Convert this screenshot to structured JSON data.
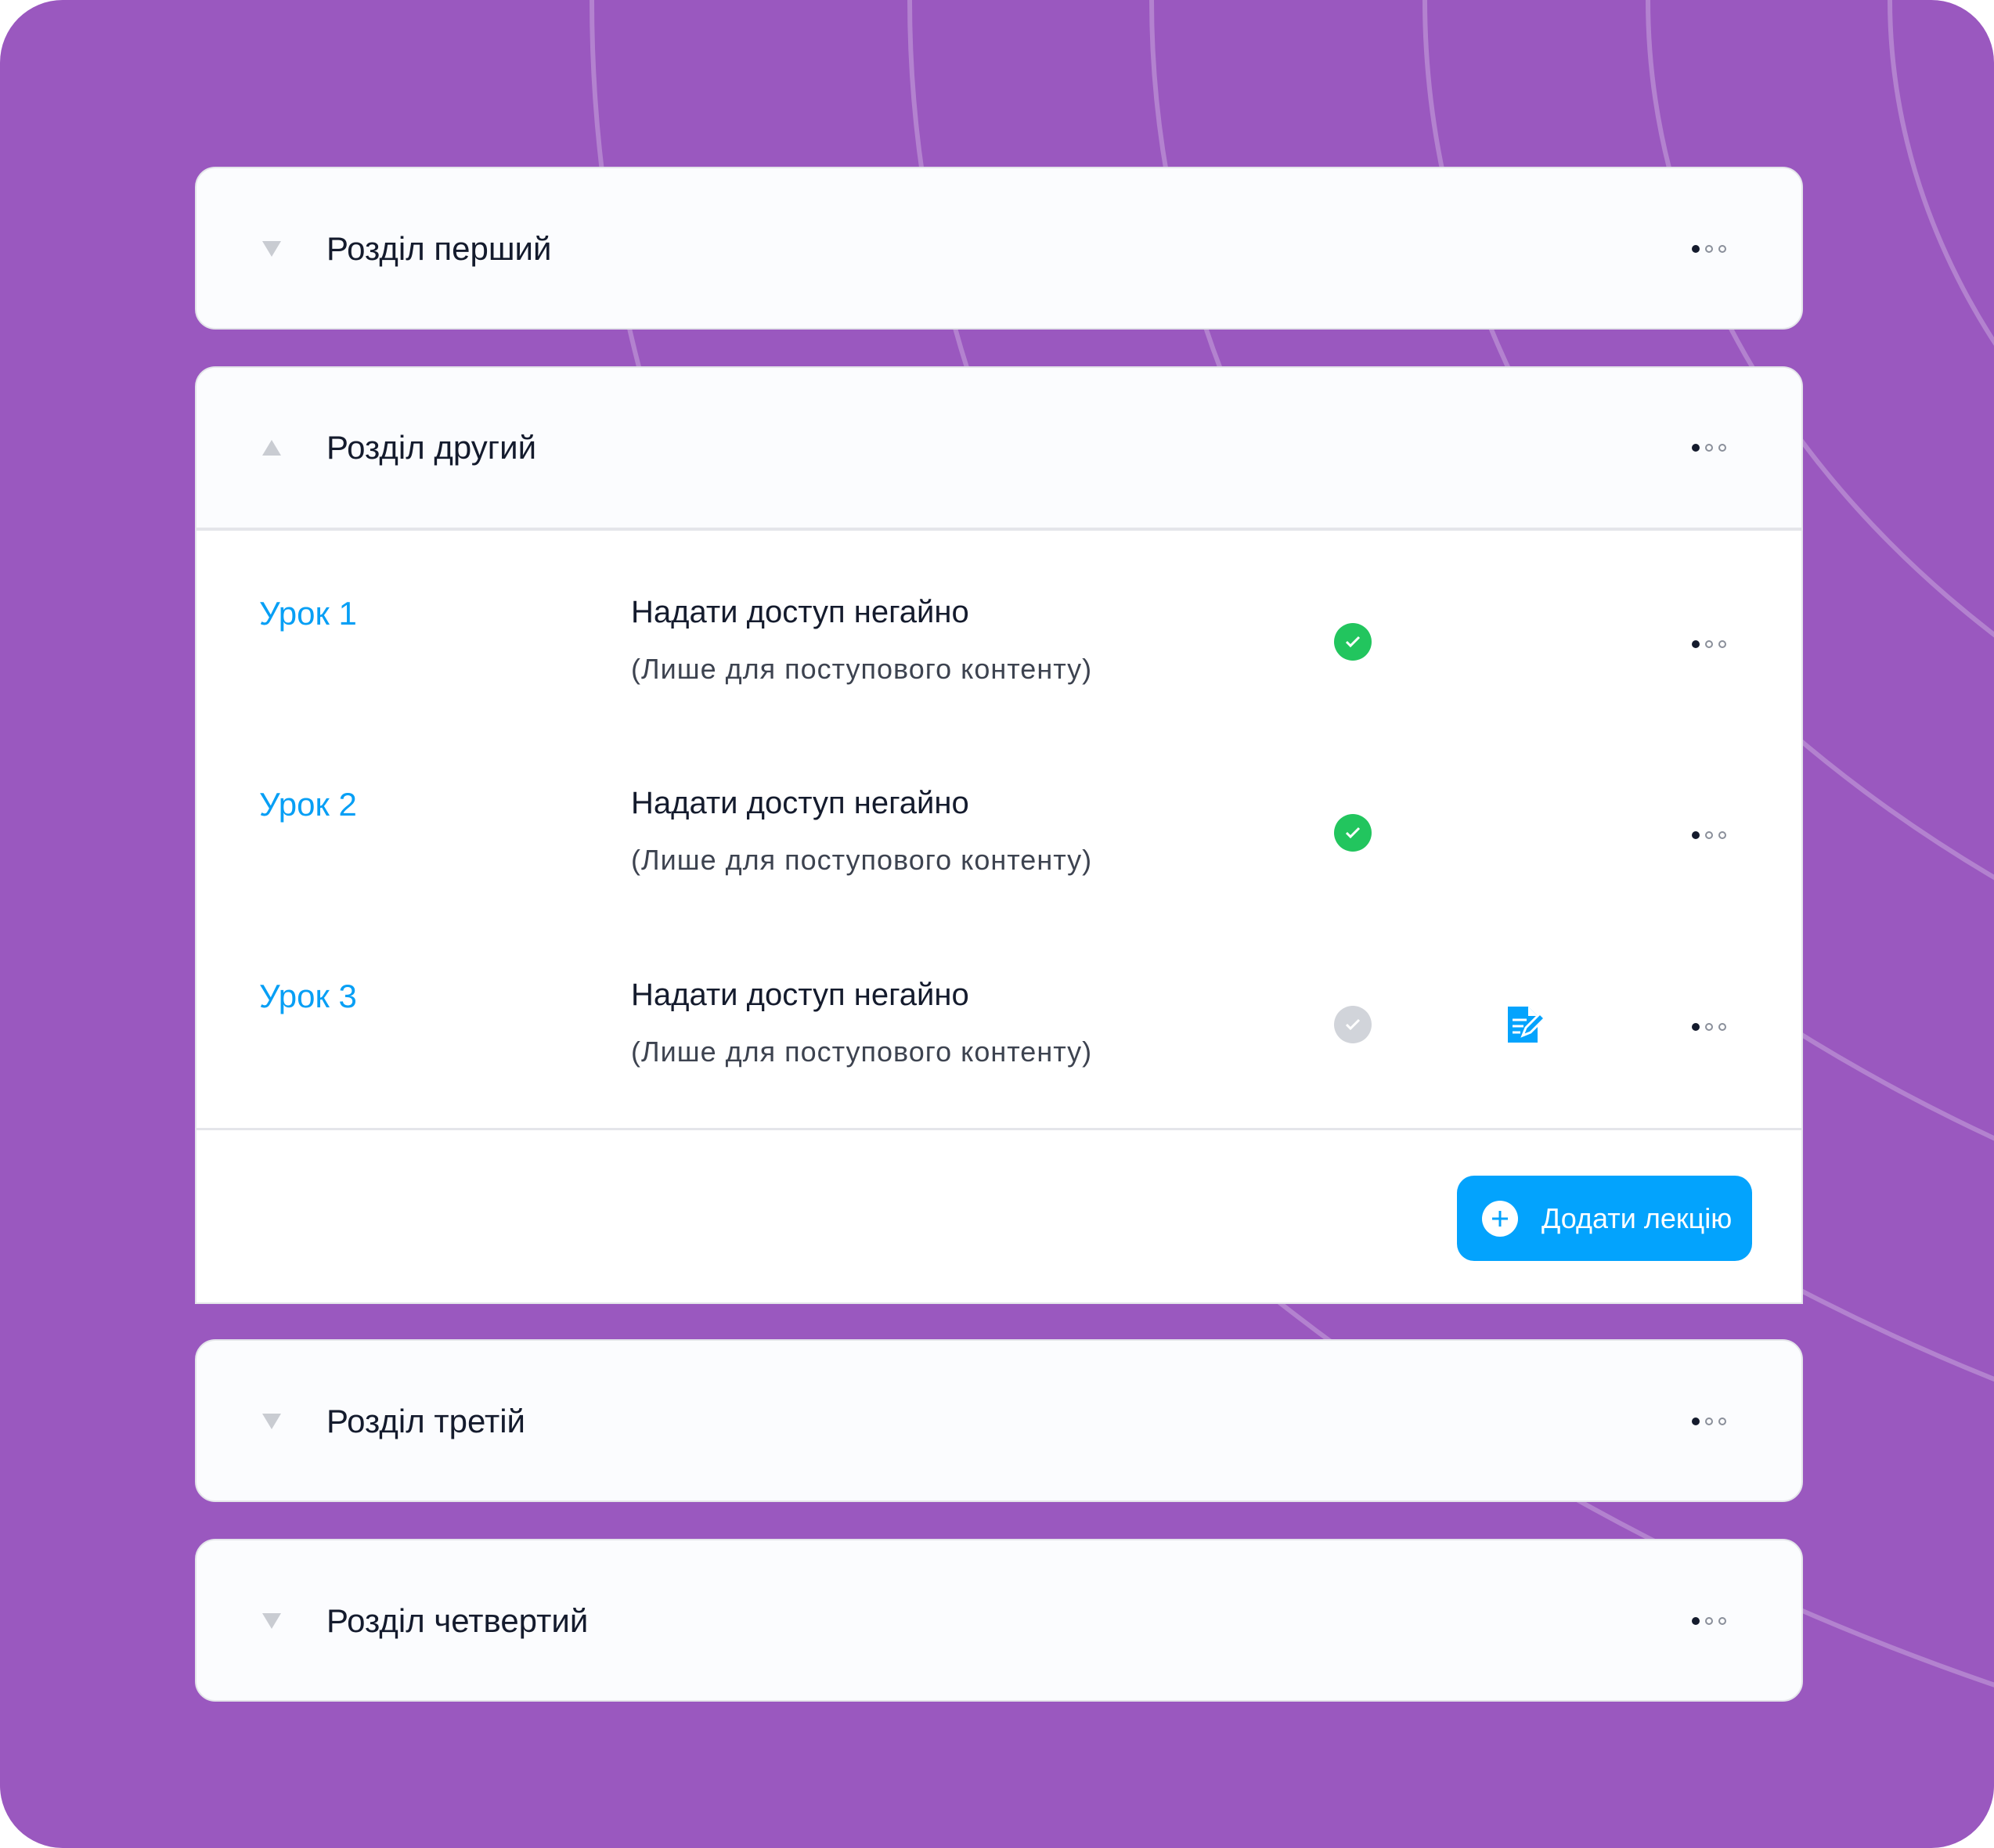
{
  "colors": {
    "background": "#9a58bf",
    "accent": "#03a3fd",
    "success": "#22c55e",
    "pending": "#d1d4da"
  },
  "sections": [
    {
      "title": "Розділ перший",
      "expanded": false
    },
    {
      "title": "Розділ другий",
      "expanded": true
    },
    {
      "title": "Розділ третій",
      "expanded": false
    },
    {
      "title": "Розділ четвертий",
      "expanded": false
    }
  ],
  "lessons": [
    {
      "name": "Урок 1",
      "access": "Надати доступ негайно",
      "note": "(Лише для поступового контенту)",
      "status": "completed"
    },
    {
      "name": "Урок 2",
      "access": "Надати доступ негайно",
      "note": "(Лише для поступового контенту)",
      "status": "completed"
    },
    {
      "name": "Урок 3",
      "access": "Надати доступ негайно",
      "note": "(Лише для поступового контенту)",
      "status": "pending",
      "icon": "edit-document-icon"
    }
  ],
  "add_lecture_label": "Додати лекцію"
}
